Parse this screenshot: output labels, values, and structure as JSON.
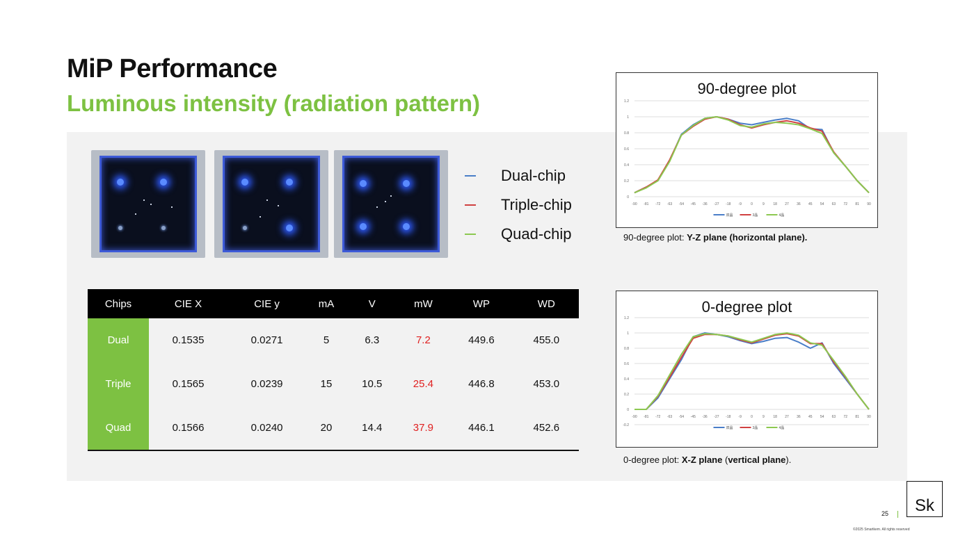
{
  "slide": {
    "title": "MiP Performance",
    "subtitle": "Luminous intensity (radiation pattern)",
    "page_number": "25",
    "logo_text": "Sk",
    "copyright": "©2025 Smartkem. All rights reserved"
  },
  "images": [
    {
      "name": "dual-chip-photo",
      "lit_leds": 2
    },
    {
      "name": "triple-chip-photo",
      "lit_leds": 3
    },
    {
      "name": "quad-chip-photo",
      "lit_leds": 4
    }
  ],
  "legend": [
    {
      "label": "Dual-chip",
      "color": "#4a7ec8"
    },
    {
      "label": "Triple-chip",
      "color": "#d04040"
    },
    {
      "label": "Quad-chip",
      "color": "#8cc850"
    }
  ],
  "table": {
    "headers": [
      "Chips",
      "CIE X",
      "CIE y",
      "mA",
      "V",
      "mW",
      "WP",
      "WD"
    ],
    "rows": [
      [
        "Dual",
        "0.1535",
        "0.0271",
        "5",
        "6.3",
        "7.2",
        "449.6",
        "455.0"
      ],
      [
        "Triple",
        "0.1565",
        "0.0239",
        "15",
        "10.5",
        "25.4",
        "446.8",
        "453.0"
      ],
      [
        "Quad",
        "0.1566",
        "0.0240",
        "20",
        "14.4",
        "37.9",
        "446.1",
        "452.6"
      ]
    ]
  },
  "captions": {
    "plot90_prefix": "90-degree plot: ",
    "plot90_bold": "Y-Z plane (horizontal plane).",
    "plot0_prefix": "0-degree plot: ",
    "plot0_bold1": "X-Z plane",
    "plot0_mid": " (",
    "plot0_bold2": "vertical plane",
    "plot0_end": ")."
  },
  "chart_data": [
    {
      "type": "line",
      "title": "90-degree plot",
      "x": [
        -90,
        -81,
        -72,
        -63,
        -54,
        -45,
        -36,
        -27,
        -18,
        -9,
        0,
        9,
        18,
        27,
        36,
        45,
        54,
        63,
        72,
        81,
        90
      ],
      "ylim": [
        0,
        1.2
      ],
      "yticks": [
        "0",
        "0.2",
        "0.4",
        "0.6",
        "0.8",
        "1",
        "1.2"
      ],
      "xticks": [
        "-90",
        "-81",
        "-72",
        "-63",
        "-54",
        "-45",
        "-36",
        "-27",
        "-18",
        "-9",
        "0",
        "9",
        "18",
        "27",
        "36",
        "45",
        "54",
        "63",
        "72",
        "81",
        "90"
      ],
      "legend_labels": [
        "双晶",
        "3晶",
        "4晶"
      ],
      "series": [
        {
          "color": "#4a7ec8",
          "values": [
            0.05,
            0.12,
            0.2,
            0.45,
            0.78,
            0.9,
            0.98,
            1.0,
            0.97,
            0.92,
            0.9,
            0.93,
            0.96,
            0.98,
            0.95,
            0.85,
            0.84,
            0.55,
            0.38,
            0.2,
            0.05
          ]
        },
        {
          "color": "#d04040",
          "values": [
            0.05,
            0.12,
            0.21,
            0.46,
            0.77,
            0.88,
            0.97,
            1.0,
            0.97,
            0.9,
            0.86,
            0.9,
            0.93,
            0.95,
            0.92,
            0.86,
            0.82,
            0.56,
            0.38,
            0.2,
            0.05
          ]
        },
        {
          "color": "#8cc850",
          "values": [
            0.05,
            0.11,
            0.2,
            0.44,
            0.77,
            0.89,
            0.98,
            1.0,
            0.96,
            0.89,
            0.87,
            0.91,
            0.93,
            0.92,
            0.9,
            0.85,
            0.79,
            0.55,
            0.38,
            0.2,
            0.05
          ]
        }
      ]
    },
    {
      "type": "line",
      "title": "0-degree plot",
      "x": [
        -90,
        -81,
        -72,
        -63,
        -54,
        -45,
        -36,
        -27,
        -18,
        -9,
        0,
        9,
        18,
        27,
        36,
        45,
        54,
        63,
        72,
        81,
        90
      ],
      "ylim": [
        -0.2,
        1.2
      ],
      "yticks": [
        "-0.2",
        "0",
        "0.2",
        "0.4",
        "0.6",
        "0.8",
        "1",
        "1.2"
      ],
      "xticks": [
        "-90",
        "-81",
        "-72",
        "-63",
        "-54",
        "-45",
        "-36",
        "-27",
        "-18",
        "-9",
        "0",
        "9",
        "18",
        "27",
        "36",
        "45",
        "54",
        "63",
        "72",
        "81",
        "90"
      ],
      "legend_labels": [
        "双晶",
        "3晶",
        "4晶"
      ],
      "series": [
        {
          "color": "#4a7ec8",
          "values": [
            0.0,
            0.0,
            0.15,
            0.4,
            0.65,
            0.95,
            1.0,
            0.98,
            0.95,
            0.9,
            0.86,
            0.89,
            0.93,
            0.94,
            0.88,
            0.8,
            0.87,
            0.6,
            0.4,
            0.2,
            0.0
          ]
        },
        {
          "color": "#d04040",
          "values": [
            0.0,
            0.0,
            0.17,
            0.42,
            0.68,
            0.93,
            0.98,
            0.98,
            0.96,
            0.91,
            0.87,
            0.92,
            0.97,
            0.99,
            0.96,
            0.86,
            0.86,
            0.62,
            0.42,
            0.2,
            0.0
          ]
        },
        {
          "color": "#8cc850",
          "values": [
            0.0,
            0.0,
            0.18,
            0.45,
            0.72,
            0.95,
            0.99,
            0.98,
            0.96,
            0.92,
            0.88,
            0.93,
            0.98,
            1.0,
            0.97,
            0.87,
            0.84,
            0.64,
            0.43,
            0.2,
            0.0
          ]
        }
      ]
    }
  ]
}
